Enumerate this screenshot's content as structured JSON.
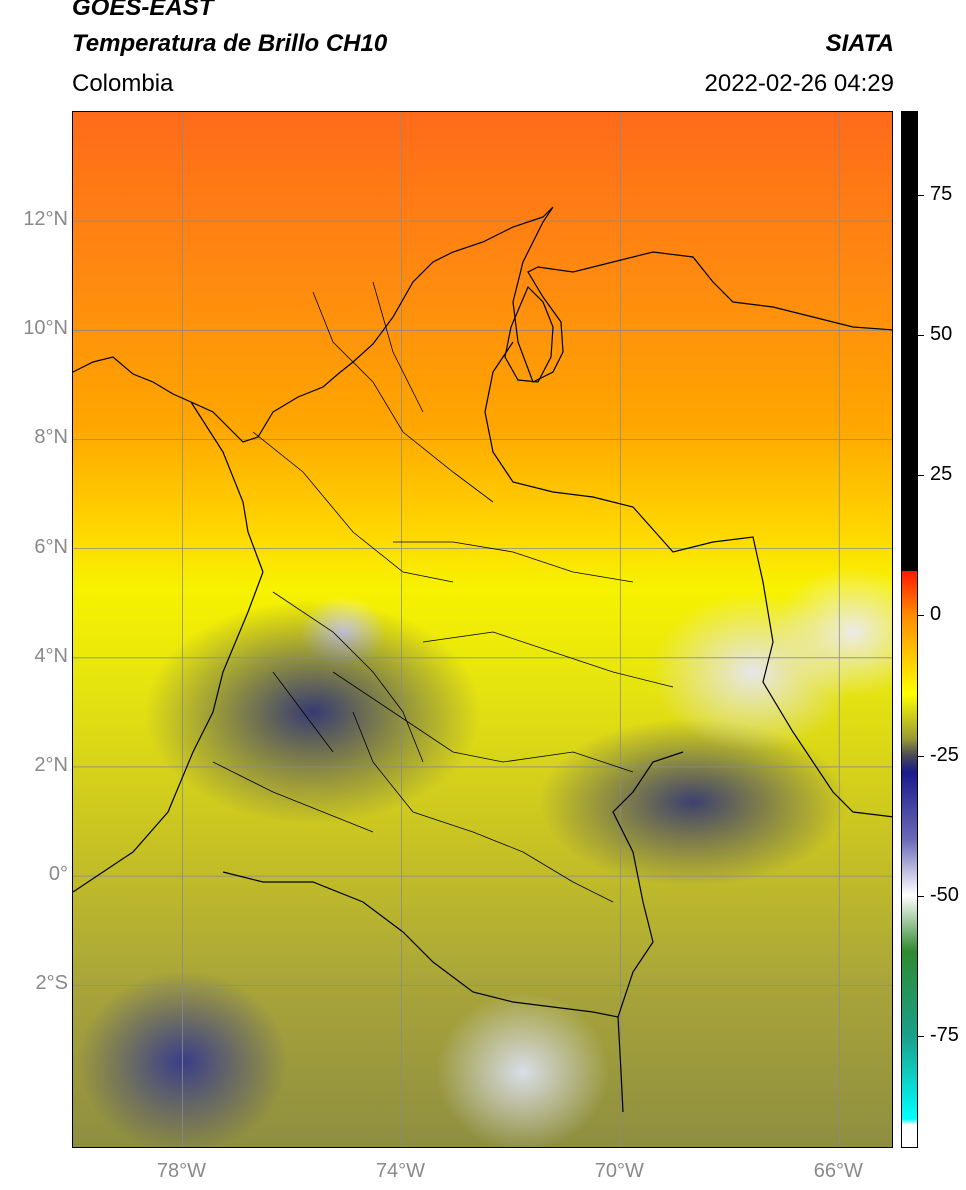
{
  "header": {
    "satellite": "GOES-EAST",
    "product": "Temperatura de Brillo CH10",
    "organization": "SIATA",
    "region": "Colombia",
    "timestamp": "2022-02-26 04:29"
  },
  "map": {
    "projection": "plate-carree",
    "lon_range": [
      -80,
      -65
    ],
    "lat_range": [
      -5,
      14
    ],
    "gridlines": true,
    "latitude_labels": [
      {
        "lat": 12,
        "label": "12°N"
      },
      {
        "lat": 10,
        "label": "10°N"
      },
      {
        "lat": 8,
        "label": "8°N"
      },
      {
        "lat": 6,
        "label": "6°N"
      },
      {
        "lat": 4,
        "label": "4°N"
      },
      {
        "lat": 2,
        "label": "2°N"
      },
      {
        "lat": 0,
        "label": "0°"
      },
      {
        "lat": -2,
        "label": "2°S"
      }
    ],
    "longitude_labels": [
      {
        "lon": -78,
        "label": "78°W"
      },
      {
        "lon": -74,
        "label": "74°W"
      },
      {
        "lon": -70,
        "label": "70°W"
      },
      {
        "lon": -66,
        "label": "66°W"
      }
    ]
  },
  "colorbar": {
    "range": [
      -95,
      90
    ],
    "ticks": [
      {
        "value": 75,
        "label": "75"
      },
      {
        "value": 50,
        "label": "50"
      },
      {
        "value": 25,
        "label": "25"
      },
      {
        "value": 0,
        "label": "0"
      },
      {
        "value": -25,
        "label": "-25"
      },
      {
        "value": -50,
        "label": "-50"
      },
      {
        "value": -75,
        "label": "-75"
      }
    ],
    "stops": [
      {
        "value": 90,
        "color": "#000000"
      },
      {
        "value": 8,
        "color": "#000000"
      },
      {
        "value": 7.9,
        "color": "#ff1a00"
      },
      {
        "value": 0,
        "color": "#ff8c00"
      },
      {
        "value": -14,
        "color": "#ffff00"
      },
      {
        "value": -22,
        "color": "#9a9a35"
      },
      {
        "value": -25,
        "color": "#4a4a55"
      },
      {
        "value": -28,
        "color": "#1a1a8c"
      },
      {
        "value": -40,
        "color": "#6a6ab8"
      },
      {
        "value": -50,
        "color": "#ffffff"
      },
      {
        "value": -60,
        "color": "#2f8a2f"
      },
      {
        "value": -75,
        "color": "#1aa08a"
      },
      {
        "value": -90,
        "color": "#00ffff"
      },
      {
        "value": -91,
        "color": "#ffffff"
      },
      {
        "value": -95,
        "color": "#ffffff"
      }
    ]
  }
}
